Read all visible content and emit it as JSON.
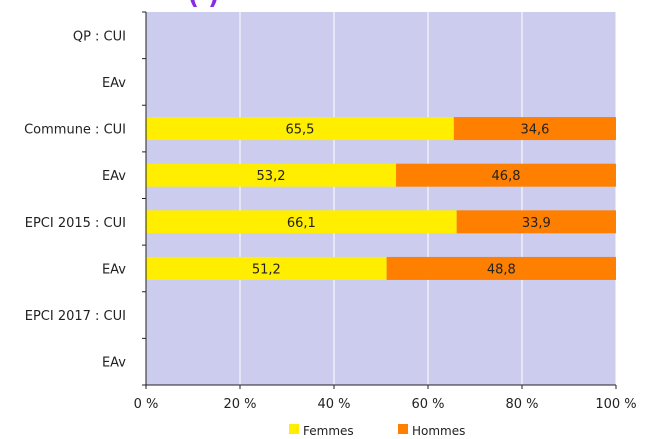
{
  "chart_data": {
    "type": "bar",
    "orientation": "horizontal",
    "stacked": true,
    "categories": [
      "QP : CUI",
      "EAv",
      "Commune : CUI",
      "EAv",
      "EPCI 2015 : CUI",
      "EAv",
      "EPCI 2017 : CUI",
      "EAv"
    ],
    "series": [
      {
        "name": "Femmes",
        "color": "#ffee00",
        "values": [
          null,
          null,
          65.5,
          53.2,
          66.1,
          51.2,
          null,
          null
        ]
      },
      {
        "name": "Hommes",
        "color": "#ff8000",
        "values": [
          null,
          null,
          34.6,
          46.8,
          33.9,
          48.8,
          null,
          null
        ]
      }
    ],
    "xticks": [
      "0 %",
      "20 %",
      "40 %",
      "60 %",
      "80 %",
      "100 %"
    ],
    "xlim": [
      0,
      100
    ],
    "grid": true,
    "plot_background": "#ccccee",
    "legend_position": "bottom-center"
  }
}
